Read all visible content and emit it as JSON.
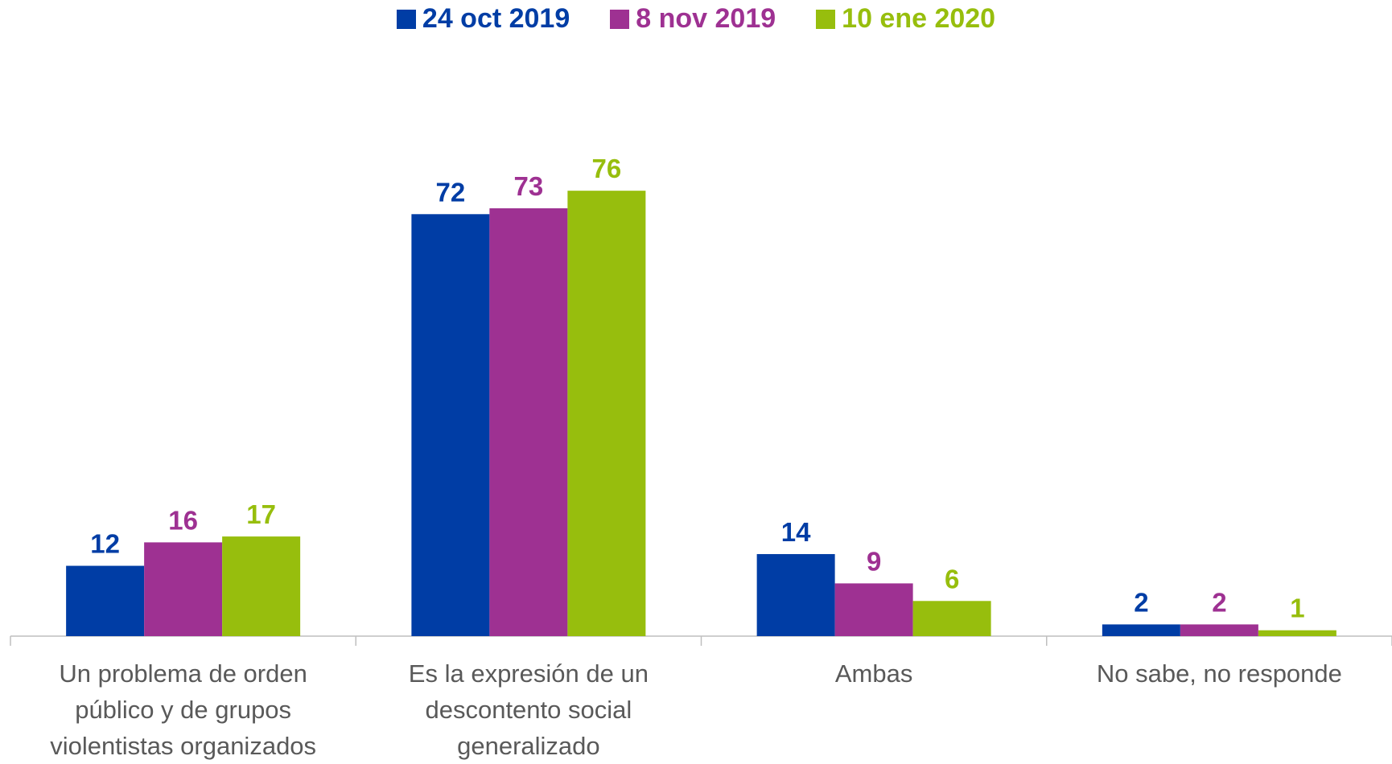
{
  "chart_data": {
    "type": "bar",
    "categories": [
      "Un problema de orden público y de grupos violentistas organizados",
      "Es la expresión de un descontento social generalizado",
      "Ambas",
      "No sabe, no responde"
    ],
    "series": [
      {
        "name": "24 oct 2019",
        "color": "#003da5",
        "values": [
          12,
          72,
          14,
          2
        ]
      },
      {
        "name": "8 nov 2019",
        "color": "#9e3192",
        "values": [
          16,
          73,
          9,
          2
        ]
      },
      {
        "name": "10 ene 2020",
        "color": "#97be0d",
        "values": [
          17,
          76,
          6,
          1
        ]
      }
    ],
    "ylim": [
      0,
      80
    ],
    "legend": "top"
  }
}
